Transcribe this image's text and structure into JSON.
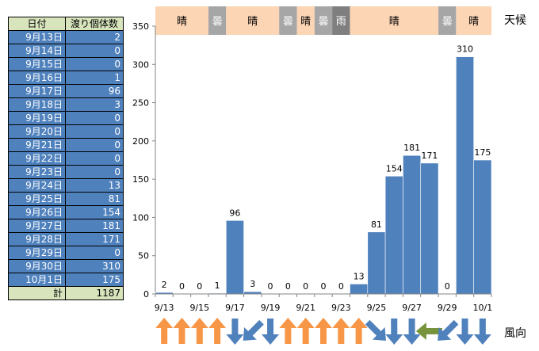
{
  "table": {
    "headers": [
      "日付",
      "渡り個体数"
    ],
    "rows": [
      [
        "9月13日",
        "2"
      ],
      [
        "9月14日",
        "0"
      ],
      [
        "9月15日",
        "0"
      ],
      [
        "9月16日",
        "1"
      ],
      [
        "9月17日",
        "96"
      ],
      [
        "9月18日",
        "3"
      ],
      [
        "9月19日",
        "0"
      ],
      [
        "9月20日",
        "0"
      ],
      [
        "9月21日",
        "0"
      ],
      [
        "9月22日",
        "0"
      ],
      [
        "9月23日",
        "0"
      ],
      [
        "9月24日",
        "13"
      ],
      [
        "9月25日",
        "81"
      ],
      [
        "9月26日",
        "154"
      ],
      [
        "9月27日",
        "181"
      ],
      [
        "9月28日",
        "171"
      ],
      [
        "9月29日",
        "0"
      ],
      [
        "9月30日",
        "310"
      ],
      [
        "10月1日",
        "175"
      ]
    ],
    "total_label": "計",
    "total_value": "1187"
  },
  "weather_label": "天候",
  "wind_label": "風向",
  "weather": [
    {
      "text": "晴",
      "days": 3,
      "color": "#fcd5b5"
    },
    {
      "text": "曇",
      "days": 1,
      "color": "#a6a6a6"
    },
    {
      "text": "晴",
      "days": 3,
      "color": "#fcd5b5"
    },
    {
      "text": "曇",
      "days": 1,
      "color": "#a6a6a6"
    },
    {
      "text": "晴",
      "days": 1,
      "color": "#fcd5b5"
    },
    {
      "text": "曇",
      "days": 1,
      "color": "#a6a6a6"
    },
    {
      "text": "雨",
      "days": 1,
      "color": "#7f7f7f"
    },
    {
      "text": "晴",
      "days": 5,
      "color": "#fcd5b5"
    },
    {
      "text": "曇",
      "days": 1,
      "color": "#a6a6a6"
    },
    {
      "text": "晴",
      "days": 2,
      "color": "#fcd5b5"
    }
  ],
  "wind": [
    {
      "dir": "up",
      "color": "#f79646"
    },
    {
      "dir": "up",
      "color": "#f79646"
    },
    {
      "dir": "up",
      "color": "#f79646"
    },
    {
      "dir": "up",
      "color": "#f79646"
    },
    {
      "dir": "down",
      "color": "#4f81bd"
    },
    {
      "dir": "down-left",
      "color": "#4f81bd"
    },
    {
      "dir": "down",
      "color": "#4f81bd"
    },
    {
      "dir": "up",
      "color": "#f79646"
    },
    {
      "dir": "up",
      "color": "#f79646"
    },
    {
      "dir": "up",
      "color": "#f79646"
    },
    {
      "dir": "up",
      "color": "#f79646"
    },
    {
      "dir": "up",
      "color": "#f79646"
    },
    {
      "dir": "down-right",
      "color": "#4f81bd"
    },
    {
      "dir": "down",
      "color": "#4f81bd"
    },
    {
      "dir": "down",
      "color": "#4f81bd"
    },
    {
      "dir": "left",
      "color": "#77933c"
    },
    {
      "dir": "down-left",
      "color": "#4f81bd"
    },
    {
      "dir": "down",
      "color": "#4f81bd"
    },
    {
      "dir": "down",
      "color": "#4f81bd"
    }
  ],
  "chart_data": {
    "type": "bar",
    "categories": [
      "9/13",
      "9/14",
      "9/15",
      "9/16",
      "9/17",
      "9/18",
      "9/19",
      "9/20",
      "9/21",
      "9/22",
      "9/23",
      "9/24",
      "9/25",
      "9/26",
      "9/27",
      "9/28",
      "9/29",
      "9/30",
      "10/1"
    ],
    "x_tick_labels": [
      "9/13",
      "9/15",
      "9/17",
      "9/19",
      "9/21",
      "9/23",
      "9/25",
      "9/27",
      "9/29",
      "10/1"
    ],
    "values": [
      2,
      0,
      0,
      1,
      96,
      3,
      0,
      0,
      0,
      0,
      0,
      13,
      81,
      154,
      181,
      171,
      0,
      310,
      175
    ],
    "ylim": [
      0,
      350
    ],
    "yticks": [
      0,
      50,
      100,
      150,
      200,
      250,
      300,
      350
    ],
    "bar_color": "#4f81bd",
    "grid": false
  }
}
